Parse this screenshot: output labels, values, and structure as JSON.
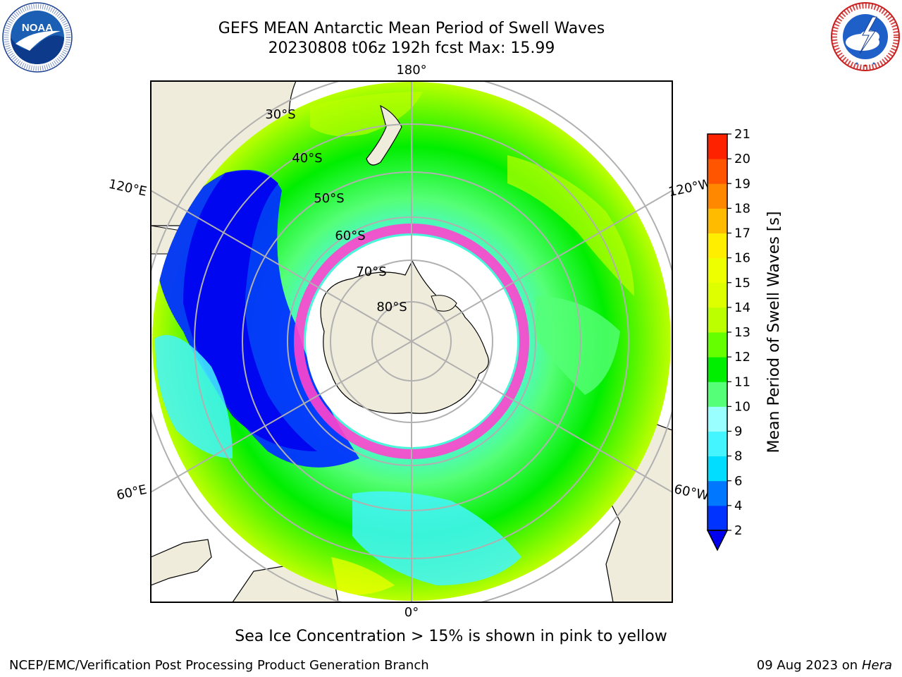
{
  "header": {
    "title_line1": "GEFS MEAN Antarctic Mean Period of Swell Waves",
    "title_line2": "20230808 t06z 192h fcst   Max: 15.99"
  },
  "logos": {
    "left": {
      "name": "noaa-logo",
      "text": "NOAA",
      "ring_text": "NATIONAL OCEANIC AND ATMOSPHERIC ADMINISTRATION · U.S. DEPARTMENT OF COMMERCE"
    },
    "right": {
      "name": "nws-logo",
      "ring_text": "NATIONAL WEATHER SERVICE"
    }
  },
  "map": {
    "projection": "south-polar-stereographic",
    "longitude_labels": [
      "180°",
      "120°E",
      "120°W",
      "60°E",
      "60°W",
      "0°"
    ],
    "latitude_labels": [
      "30°S",
      "40°S",
      "50°S",
      "60°S",
      "70°S",
      "80°S"
    ]
  },
  "colorbar": {
    "label": "Mean Period of Swell Waves [s]",
    "ticks": [
      "2",
      "4",
      "6",
      "8",
      "9",
      "10",
      "11",
      "12",
      "13",
      "14",
      "15",
      "16",
      "17",
      "18",
      "19",
      "20",
      "21"
    ],
    "colors": [
      "#0033ff",
      "#0077ff",
      "#00ddff",
      "#44f4ff",
      "#99ffff",
      "#55ff77",
      "#00ee00",
      "#66ff00",
      "#bbff00",
      "#ddff00",
      "#eeff00",
      "#ffee00",
      "#ffbb00",
      "#ff8800",
      "#ff5500",
      "#ff2200"
    ],
    "extend_color": "#0000ee"
  },
  "footer": {
    "note": "Sea Ice Concentration > 15% is shown in pink to yellow",
    "credit": "NCEP/EMC/Verification Post Processing Product Generation Branch",
    "date": "09 Aug 2023 on",
    "machine": "Hera"
  }
}
